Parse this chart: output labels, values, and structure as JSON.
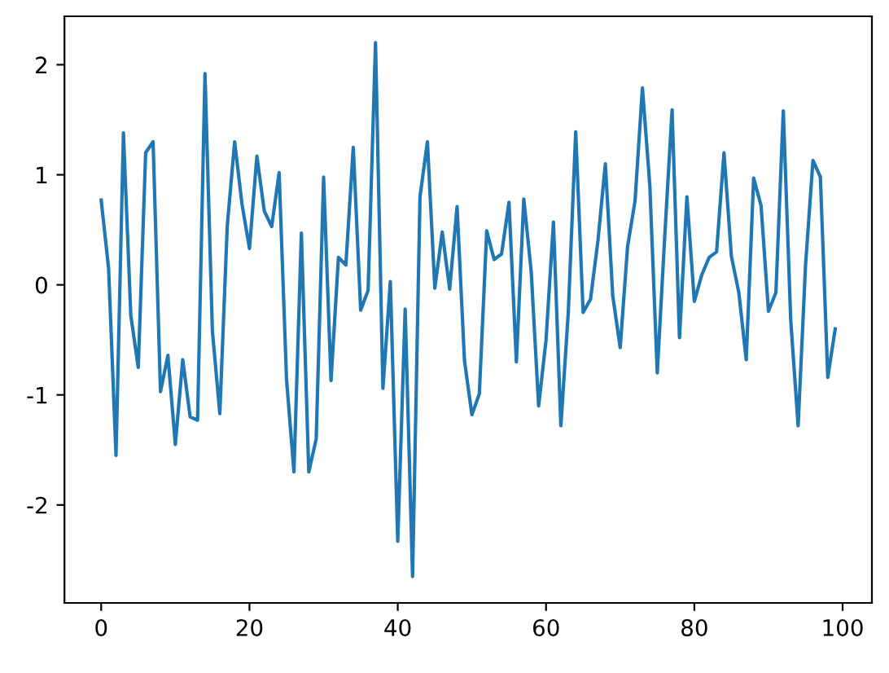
{
  "chart_data": {
    "type": "line",
    "x": [
      0,
      1,
      2,
      3,
      4,
      5,
      6,
      7,
      8,
      9,
      10,
      11,
      12,
      13,
      14,
      15,
      16,
      17,
      18,
      19,
      20,
      21,
      22,
      23,
      24,
      25,
      26,
      27,
      28,
      29,
      30,
      31,
      32,
      33,
      34,
      35,
      36,
      37,
      38,
      39,
      40,
      41,
      42,
      43,
      44,
      45,
      46,
      47,
      48,
      49,
      50,
      51,
      52,
      53,
      54,
      55,
      56,
      57,
      58,
      59,
      60,
      61,
      62,
      63,
      64,
      65,
      66,
      67,
      68,
      69,
      70,
      71,
      72,
      73,
      74,
      75,
      76,
      77,
      78,
      79,
      80,
      81,
      82,
      83,
      84,
      85,
      86,
      87,
      88,
      89,
      90,
      91,
      92,
      93,
      94,
      95,
      96,
      97,
      98,
      99
    ],
    "series": [
      {
        "color": "#1f77b4",
        "values": [
          0.77,
          0.15,
          -1.55,
          1.38,
          -0.28,
          -0.75,
          1.2,
          1.3,
          -0.97,
          -0.64,
          -1.45,
          -0.68,
          -1.2,
          -1.23,
          1.92,
          -0.42,
          -1.17,
          0.53,
          1.3,
          0.73,
          0.33,
          1.17,
          0.67,
          0.53,
          1.02,
          -0.86,
          -1.7,
          0.47,
          -1.7,
          -1.4,
          0.98,
          -0.87,
          0.25,
          0.18,
          1.25,
          -0.23,
          -0.05,
          2.2,
          -0.94,
          0.03,
          -2.33,
          -0.22,
          -2.65,
          0.8,
          1.3,
          -0.03,
          0.48,
          -0.04,
          0.71,
          -0.69,
          -1.18,
          -0.99,
          0.49,
          0.23,
          0.28,
          0.75,
          -0.7,
          0.78,
          0.12,
          -1.1,
          -0.5,
          0.57,
          -1.28,
          -0.25,
          1.39,
          -0.25,
          -0.13,
          0.4,
          1.1,
          -0.1,
          -0.57,
          0.35,
          0.76,
          1.79,
          0.9,
          -0.8,
          0.43,
          1.59,
          -0.48,
          0.8,
          -0.15,
          0.09,
          0.25,
          0.3,
          1.2,
          0.26,
          -0.07,
          -0.68,
          0.97,
          0.72,
          -0.24,
          -0.07,
          1.58,
          -0.32,
          -1.28,
          0.18,
          1.13,
          0.98,
          -0.84,
          -0.4
        ]
      }
    ],
    "xlim": [
      -4.95,
      103.95
    ],
    "ylim": [
      -2.89,
      2.44
    ],
    "xticks": [
      0,
      20,
      40,
      60,
      80,
      100
    ],
    "yticks": [
      -2,
      -1,
      0,
      1,
      2
    ],
    "grid": false,
    "legend": false,
    "marker": "none",
    "line_style": "solid"
  }
}
